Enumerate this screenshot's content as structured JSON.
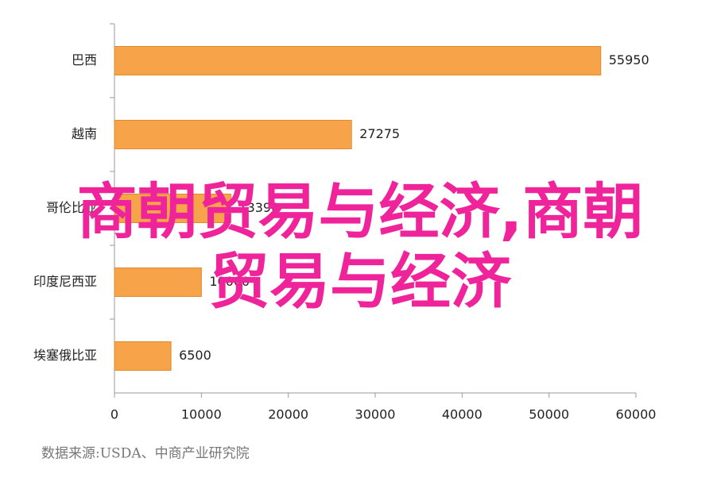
{
  "chart_data": {
    "type": "bar",
    "orientation": "horizontal",
    "categories": [
      "巴西",
      "越南",
      "哥伦比亚",
      "印度尼西亚",
      "埃塞俄比亚"
    ],
    "values": [
      55950,
      27275,
      13390,
      10000,
      6500
    ],
    "color": "#f7a34a",
    "xlim": [
      0,
      60000
    ],
    "xticks": [
      0,
      10000,
      20000,
      30000,
      40000,
      50000,
      60000
    ],
    "grid": false,
    "source": "数据来源:USDA、中商产业研究院",
    "overlay_text": [
      "商朝贸易与经济,商朝",
      "贸易与经济"
    ]
  }
}
